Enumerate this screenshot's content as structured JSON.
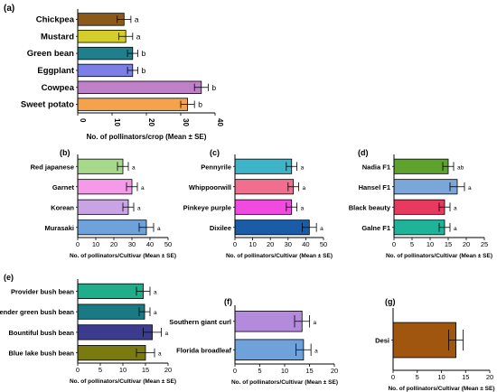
{
  "chart_data": [
    {
      "panel": "(a)",
      "type": "bar",
      "orientation": "horizontal",
      "categories": [
        "Chickpea",
        "Mustard",
        "Green bean",
        "Eggplant",
        "Cowpea",
        "Sweet potato"
      ],
      "values": [
        13.5,
        14,
        16,
        16,
        36,
        32
      ],
      "errors": [
        2,
        2,
        1.5,
        1.5,
        2,
        2
      ],
      "letters": [
        "a",
        "a",
        "b",
        "b",
        "b",
        "b"
      ],
      "colors": [
        "#8B5A1A",
        "#D4CE2A",
        "#1F7F8C",
        "#7B7FE8",
        "#C080C8",
        "#F5A24A"
      ],
      "xlabel": "No. of pollinators/crop (Mean ± SE)",
      "xlim": [
        0,
        40
      ],
      "xticks": [
        "0",
        "10",
        "20",
        "30",
        "40"
      ]
    },
    {
      "panel": "(b)",
      "type": "bar",
      "orientation": "horizontal",
      "categories": [
        "Red japanese",
        "Garnet",
        "Korean",
        "Murasaki"
      ],
      "values": [
        25,
        30,
        28,
        38
      ],
      "errors": [
        3,
        3,
        3,
        4
      ],
      "letters": [
        "a",
        "a",
        "a",
        "a"
      ],
      "colors": [
        "#A6DA8A",
        "#F59AE8",
        "#C8A4E4",
        "#6FA2DA"
      ],
      "xlabel": "No. of pollinators/Cultivar (Mean ± SE)",
      "xlim": [
        0,
        50
      ],
      "xticks": [
        "0",
        "10",
        "20",
        "30",
        "40",
        "50"
      ]
    },
    {
      "panel": "(c)",
      "type": "bar",
      "orientation": "horizontal",
      "categories": [
        "Pennyrile",
        "Whippoorwill",
        "Pinkeye purple",
        "Dixilee"
      ],
      "values": [
        32,
        33,
        32,
        42
      ],
      "errors": [
        3,
        3,
        3,
        4
      ],
      "letters": [
        "a",
        "a",
        "a",
        "a"
      ],
      "colors": [
        "#3EB4C8",
        "#F26E8E",
        "#F04AE0",
        "#1A5CA8"
      ],
      "xlabel": "No. of pollinators/Cultivar (Mean ± SE)",
      "xlim": [
        0,
        50
      ],
      "xticks": [
        "0",
        "10",
        "20",
        "30",
        "40",
        "50"
      ]
    },
    {
      "panel": "(d)",
      "type": "bar",
      "orientation": "horizontal",
      "categories": [
        "Nadia F1",
        "Hansel F1",
        "Black beauty",
        "Galne F1"
      ],
      "values": [
        15,
        17.5,
        14,
        14
      ],
      "errors": [
        1.5,
        2,
        1.5,
        1.5
      ],
      "letters": [
        "ab",
        "a",
        "a",
        "a"
      ],
      "colors": [
        "#5EA32E",
        "#7AA6DA",
        "#E83A5E",
        "#1FB49A"
      ],
      "xlabel": "No. of pollinators/Cultivar (Mean ± SE)",
      "xlim": [
        0,
        25
      ],
      "xticks": [
        "0",
        "5",
        "10",
        "15",
        "20",
        "25"
      ]
    },
    {
      "panel": "(e)",
      "type": "bar",
      "orientation": "horizontal",
      "categories": [
        "Provider bush bean",
        "Tender green bush bean",
        "Bountiful bush bean",
        "Blue lake bush bean"
      ],
      "values": [
        14.5,
        14.8,
        16.5,
        15
      ],
      "errors": [
        1.5,
        1.2,
        2,
        2
      ],
      "letters": [
        "a",
        "a",
        "a",
        "a"
      ],
      "colors": [
        "#1FAE8A",
        "#1A7A84",
        "#3C3C8E",
        "#7A7A10"
      ],
      "xlabel": "No. of pollinators/Cultivar (Mean ± SE)",
      "xlim": [
        0,
        20
      ],
      "xticks": [
        "0",
        "5",
        "10",
        "15",
        "20"
      ]
    },
    {
      "panel": "(f)",
      "type": "bar",
      "orientation": "horizontal",
      "categories": [
        "Southern giant curl",
        "Florida broadleaf"
      ],
      "values": [
        13.5,
        13.8
      ],
      "errors": [
        1.5,
        1.5
      ],
      "letters": [
        "a",
        "a"
      ],
      "colors": [
        "#B48ADC",
        "#6FA2DA"
      ],
      "xlabel": "No. of pollinators/Cultivar (Mean ± SE)",
      "xlim": [
        0,
        20
      ],
      "xticks": [
        "0",
        "5",
        "10",
        "15",
        "20"
      ]
    },
    {
      "panel": "(g)",
      "type": "bar",
      "orientation": "horizontal",
      "categories": [
        "Desi"
      ],
      "values": [
        13
      ],
      "errors": [
        1.5
      ],
      "letters": [],
      "colors": [
        "#A0560E"
      ],
      "xlabel": "No. of pollinators/Cultivar (Mean ± SE)",
      "xlim": [
        0,
        20
      ],
      "xticks": [
        "0",
        "5",
        "10",
        "15",
        "20"
      ]
    }
  ]
}
